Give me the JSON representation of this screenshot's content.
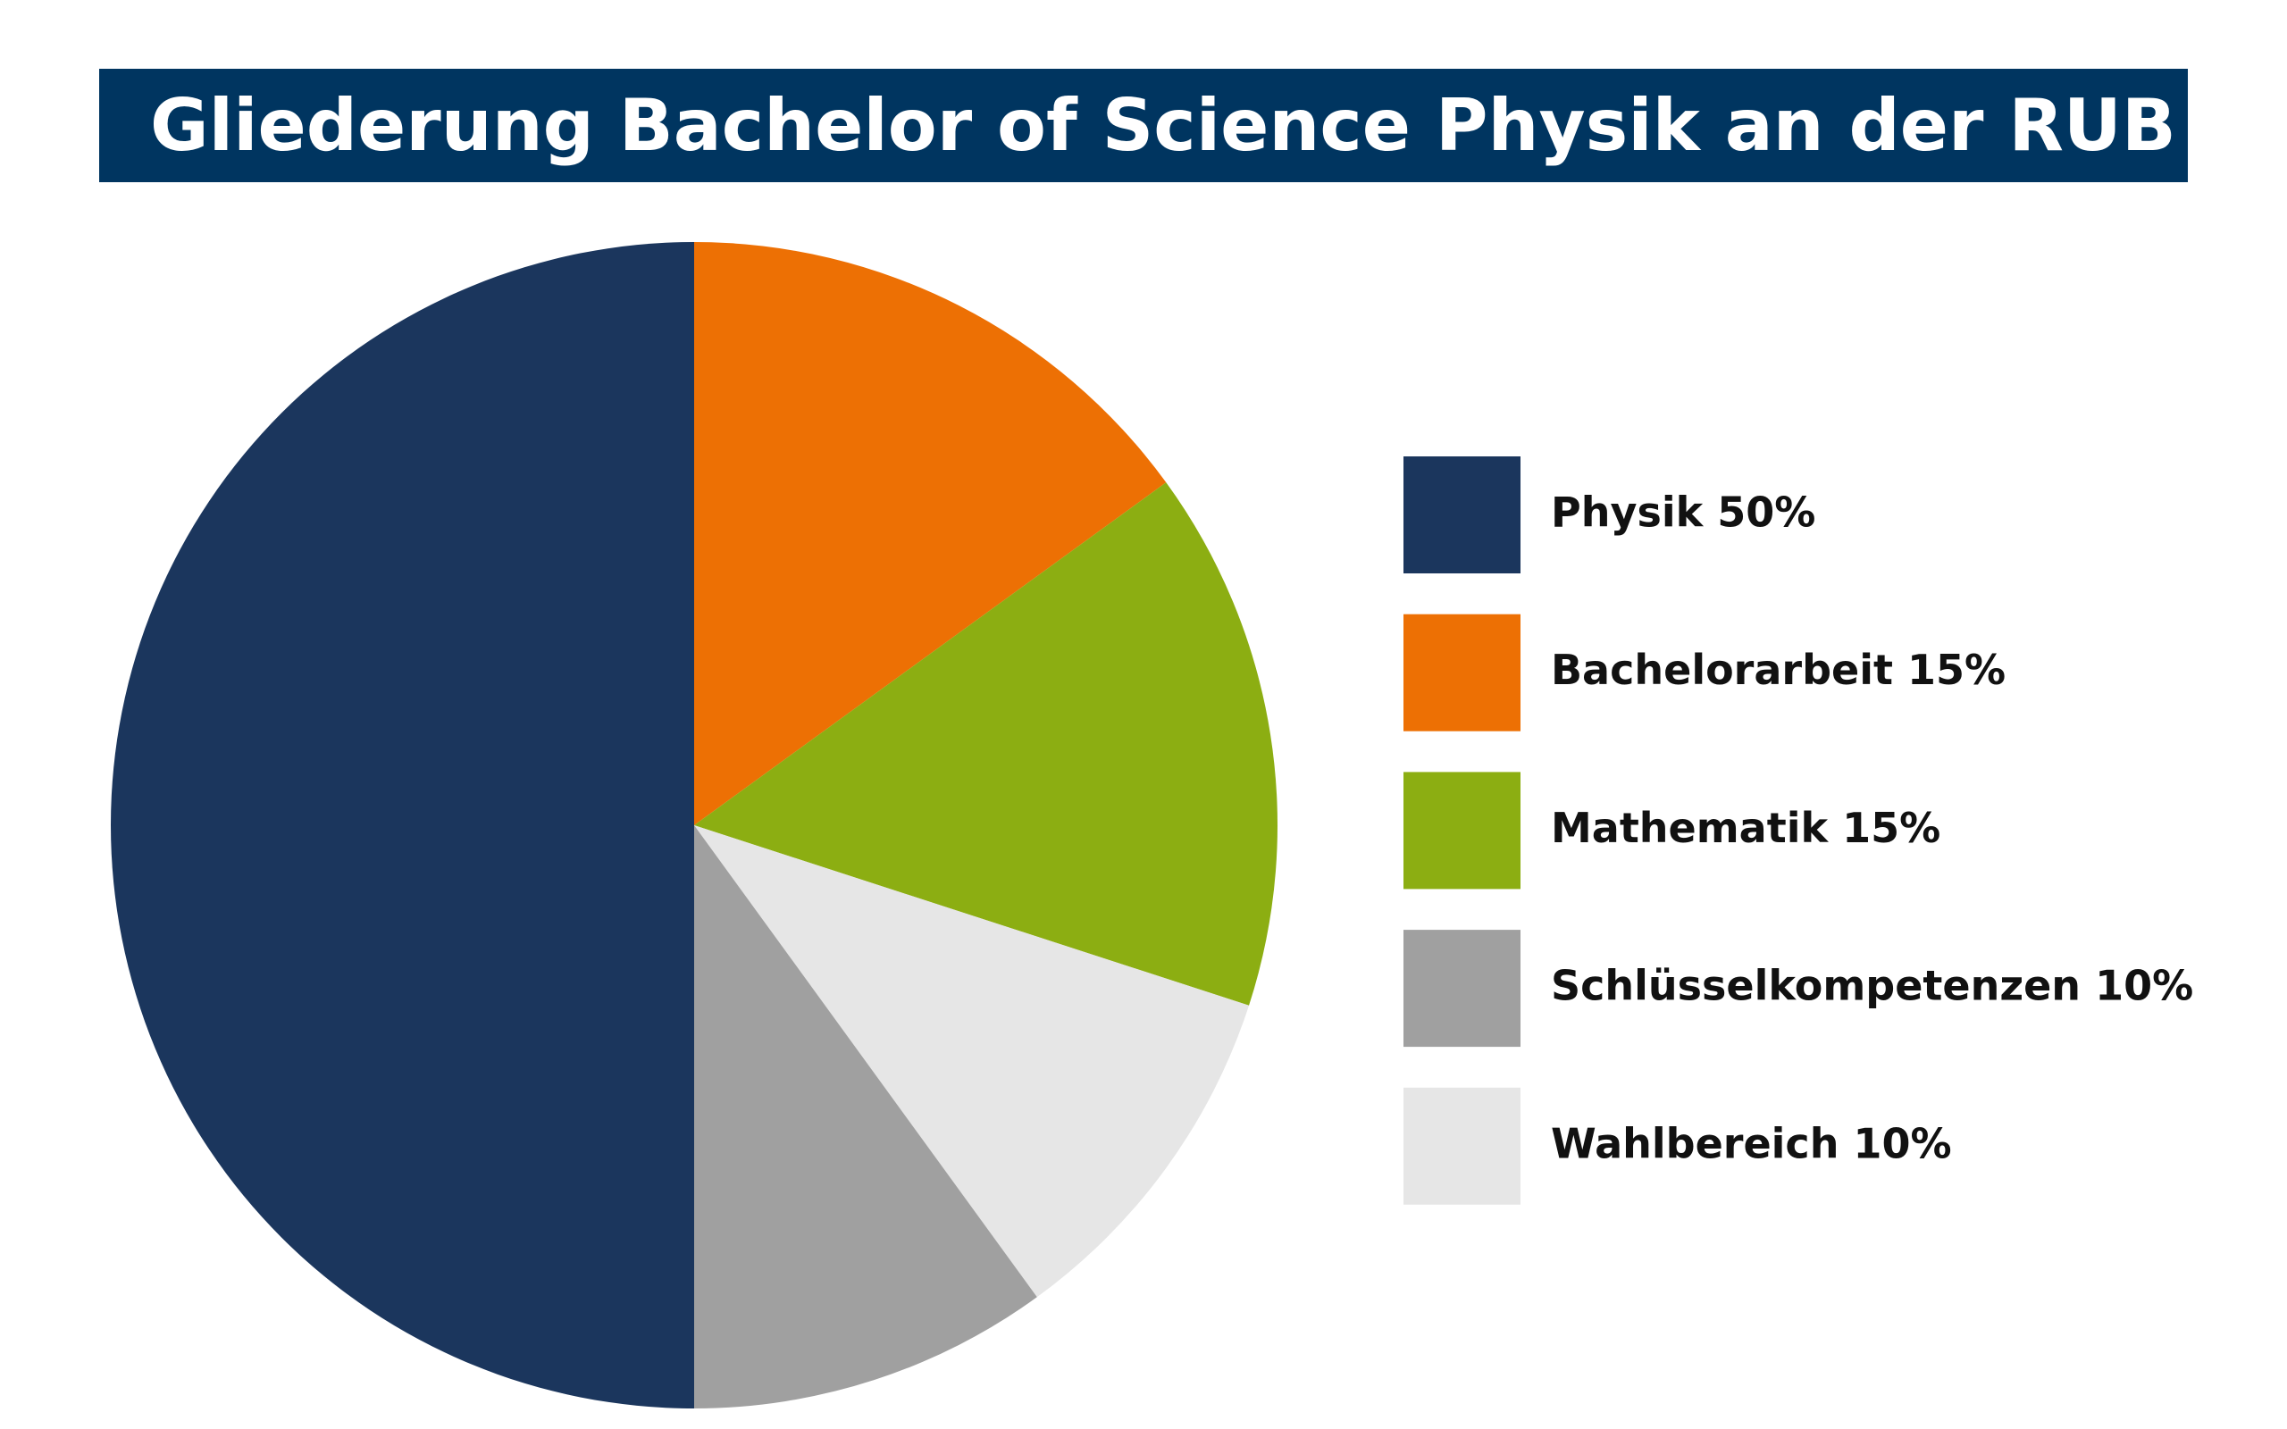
{
  "chart_data": {
    "type": "pie",
    "title": "Gliederung Bachelor of Science Physik an der RUB",
    "categories": [
      "Physik 50%",
      "Bachelorarbeit 15%",
      "Mathematik 15%",
      "Schlüsselkompetenzen 10%",
      "Wahlbereich 10%"
    ],
    "values": [
      50,
      15,
      15,
      10,
      10
    ],
    "colors": [
      "#1b365d",
      "#ed7004",
      "#8cae12",
      "#a0a0a0",
      "#e6e6e6"
    ],
    "legend": "right"
  }
}
